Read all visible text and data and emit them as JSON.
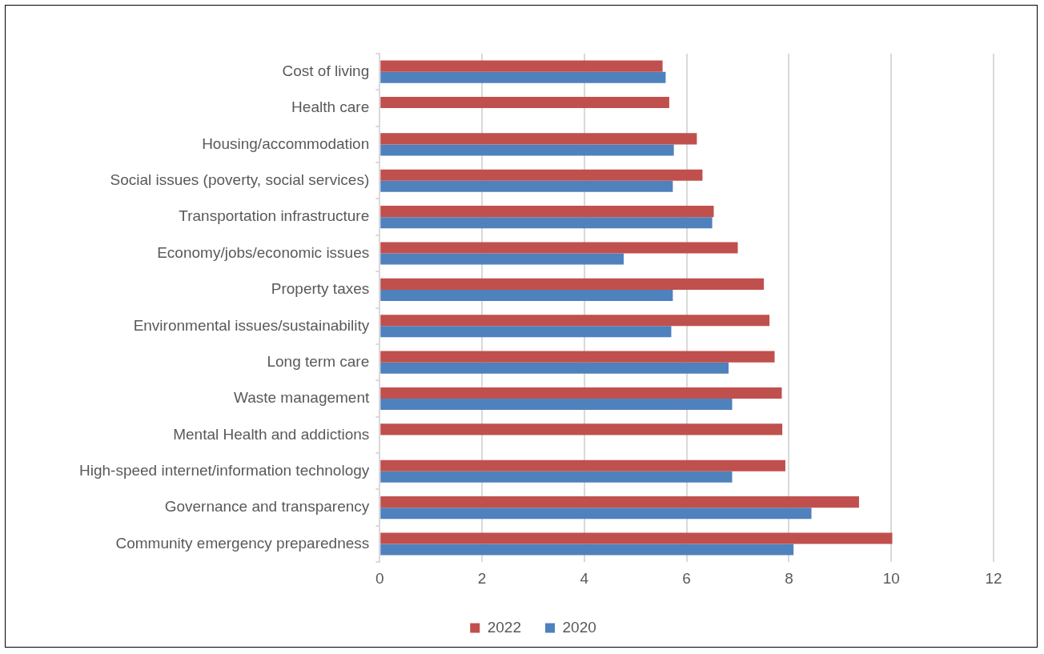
{
  "chart_data": {
    "type": "bar",
    "orientation": "horizontal",
    "categories": [
      "Cost of living",
      "Health care",
      "Housing/accommodation",
      "Social issues (poverty, social services)",
      "Transportation infrastructure",
      "Economy/jobs/economic issues",
      "Property taxes",
      "Environmental issues/sustainability",
      "Long term care",
      "Waste management",
      "Mental Health and addictions",
      "High-speed internet/information technology",
      "Governance and transparency",
      "Community emergency preparedness"
    ],
    "series": [
      {
        "name": "2022",
        "color": "#c0504d",
        "values": [
          5.53,
          5.66,
          6.2,
          6.31,
          6.53,
          7.0,
          7.51,
          7.62,
          7.72,
          7.86,
          7.87,
          7.93,
          9.37,
          10.02
        ]
      },
      {
        "name": "2020",
        "color": "#4f81bd",
        "values": [
          5.59,
          null,
          5.75,
          5.73,
          6.5,
          4.77,
          5.73,
          5.7,
          6.82,
          6.89,
          null,
          6.89,
          8.44,
          8.09
        ]
      }
    ],
    "xlim": [
      0,
      12
    ],
    "xticks": [
      0,
      2,
      4,
      6,
      8,
      10,
      12
    ],
    "grid": "x",
    "legend": "bottom"
  }
}
